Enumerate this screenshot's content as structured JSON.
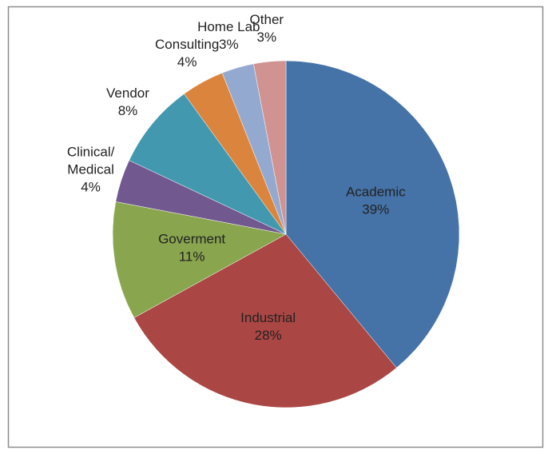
{
  "chart_data": {
    "type": "pie",
    "categories": [
      "Academic",
      "Industrial",
      "Goverment",
      "Clinical/\nMedical",
      "Vendor",
      "Consulting",
      "Home Lab",
      "Other"
    ],
    "values": [
      39,
      28,
      11,
      4,
      8,
      4,
      3,
      3
    ],
    "value_labels": [
      "39%",
      "28%",
      "11%",
      "4%",
      "8%",
      "4%",
      "3%",
      "3%"
    ],
    "colors": [
      "#4572a7",
      "#aa4643",
      "#89a54e",
      "#71588f",
      "#4198af",
      "#db843d",
      "#93a9cf",
      "#d19392"
    ]
  }
}
